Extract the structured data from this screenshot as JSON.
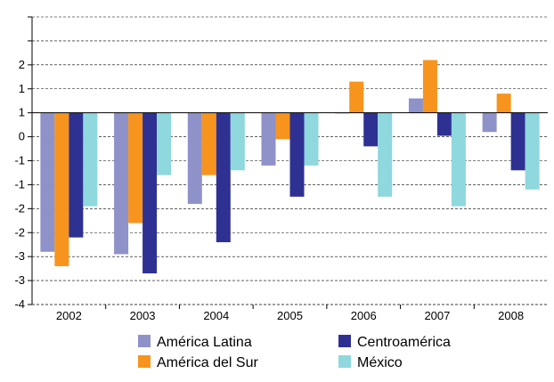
{
  "chart_data": {
    "type": "bar",
    "categories": [
      "2002",
      "2003",
      "2004",
      "2005",
      "2006",
      "2007",
      "2008"
    ],
    "y_tick_labels": [
      "-4",
      "-3",
      "-3",
      "-2",
      "-2",
      "-1",
      "-1",
      "0",
      "1",
      "1",
      "2"
    ],
    "ylim": [
      -4,
      2
    ],
    "y_tick_step": 0.5,
    "grid": "horizontal dashed",
    "legend_position": "bottom",
    "series": [
      {
        "name": "América Latina",
        "color": "#8f92c9",
        "values": [
          -2.9,
          -2.95,
          -1.9,
          -1.1,
          0.0,
          0.3,
          -0.4
        ]
      },
      {
        "name": "América del Sur",
        "color": "#f7941d",
        "values": [
          -3.2,
          -2.3,
          -1.3,
          -0.55,
          0.65,
          1.1,
          0.4
        ]
      },
      {
        "name": "Centroamérica",
        "color": "#2e3192",
        "values": [
          -2.6,
          -3.35,
          -2.7,
          -1.75,
          -0.7,
          -0.48,
          -1.2
        ]
      },
      {
        "name": "México",
        "color": "#8ed8de",
        "values": [
          -1.95,
          -1.3,
          -1.2,
          -1.1,
          -1.75,
          -1.95,
          -1.6
        ]
      }
    ]
  }
}
